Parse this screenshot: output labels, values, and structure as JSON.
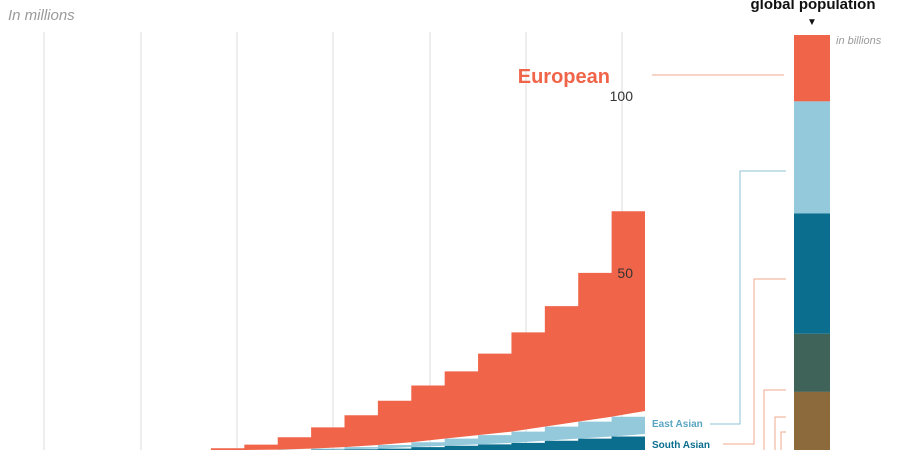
{
  "chart_data": {
    "type": "area",
    "stacked": true,
    "axis_note": "In millions",
    "y_ticks": [
      50,
      100
    ],
    "ylim": [
      0,
      118
    ],
    "grid": true,
    "series": [
      {
        "name": "South Asian",
        "color": "#0b6e8e",
        "values": [
          0,
          0,
          0,
          0,
          0,
          0,
          0,
          0,
          0.1,
          0.2,
          0.4,
          0.8,
          1.2,
          1.6,
          2.0,
          2.6,
          3.2,
          3.8,
          4.5
        ]
      },
      {
        "name": "East Asian",
        "color": "#94c9dc",
        "values": [
          0,
          0,
          0,
          0,
          0,
          0,
          0,
          0.1,
          0.3,
          0.6,
          1.0,
          1.4,
          2.0,
          2.6,
          3.2,
          4.0,
          4.8,
          5.6,
          6.5
        ]
      },
      {
        "name": "European",
        "color": "#f0654a",
        "values": [
          0,
          0,
          0,
          0,
          0,
          0.5,
          1.5,
          3.5,
          6.0,
          9.0,
          12.5,
          16.0,
          19.0,
          23.0,
          28.0,
          34.0,
          42.0,
          58.0,
          106.0
        ]
      }
    ],
    "labels": {
      "European": "European",
      "East Asian": "East Asian",
      "South Asian": "South Asian"
    }
  },
  "bar_panel": {
    "title": "global population",
    "unit_note": "in billions",
    "segments": [
      {
        "key": "european",
        "color": "#f0654a",
        "share": 0.16
      },
      {
        "key": "east-asian",
        "color": "#94c9dc",
        "share": 0.27
      },
      {
        "key": "south-asian",
        "color": "#0b6e8e",
        "share": 0.29
      },
      {
        "key": "dark-green",
        "color": "#3f6259",
        "share": 0.14
      },
      {
        "key": "brown",
        "color": "#8c6a3c",
        "share": 0.14
      }
    ]
  },
  "colors": {
    "grid": "#dddddd",
    "leader": "#f0a98f",
    "east_asian_leader": "#8cc3d6",
    "tick_text": "#333333"
  }
}
